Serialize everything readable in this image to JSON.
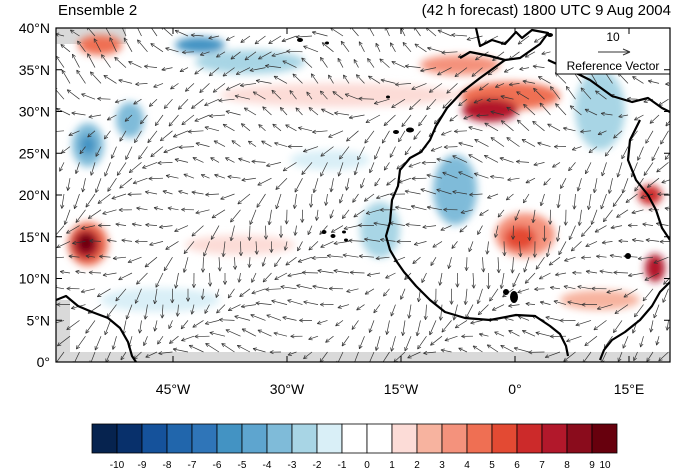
{
  "title_left": "Ensemble 2",
  "title_right": "(42 h forecast) 1800 UTC 9 Aug 2004",
  "y_ticks": [
    {
      "label": "40°N",
      "value": 40
    },
    {
      "label": "35°N",
      "value": 35
    },
    {
      "label": "30°N",
      "value": 30
    },
    {
      "label": "25°N",
      "value": 25
    },
    {
      "label": "20°N",
      "value": 20
    },
    {
      "label": "15°N",
      "value": 15
    },
    {
      "label": "10°N",
      "value": 10
    },
    {
      "label": "5°N",
      "value": 5
    },
    {
      "label": "0°",
      "value": 0
    }
  ],
  "x_ticks": [
    {
      "label": "45°W",
      "value": -45
    },
    {
      "label": "30°W",
      "value": -30
    },
    {
      "label": "15°W",
      "value": -15
    },
    {
      "label": "0°",
      "value": 0
    },
    {
      "label": "15°E",
      "value": 15
    }
  ],
  "reference_vector": {
    "magnitude": "10",
    "label": "Reference Vector"
  },
  "colorbar": {
    "labels": [
      "-10",
      "-9",
      "-8",
      "-7",
      "-6",
      "-5",
      "-4",
      "-3",
      "-2",
      "-1",
      "0",
      "1",
      "2",
      "3",
      "4",
      "5",
      "6",
      "7",
      "8",
      "9",
      "10"
    ],
    "colors": [
      "#06234f",
      "#08306b",
      "#15529b",
      "#2166ac",
      "#2f75b8",
      "#4393c3",
      "#5ea5cf",
      "#7fbbd9",
      "#a8d5e5",
      "#d9eff7",
      "#ffffff",
      "#ffffff",
      "#fcdcd7",
      "#f7b39f",
      "#f4927c",
      "#ef6f53",
      "#e34a33",
      "#cc2a2a",
      "#b2182b",
      "#8a0c1c",
      "#67000d"
    ]
  },
  "colors": {
    "land": "#d9d9d9",
    "coast": "#000000",
    "vector": "#333333"
  }
}
